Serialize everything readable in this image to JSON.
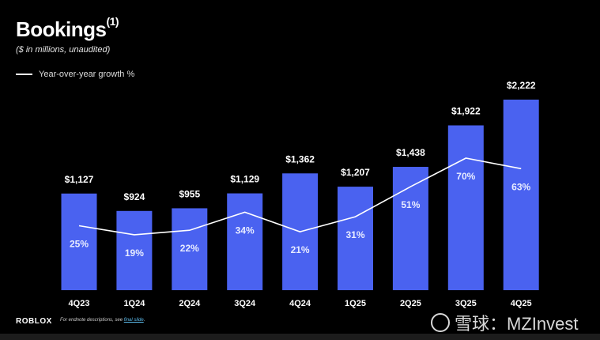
{
  "title": "Bookings",
  "title_superscript": "(1)",
  "subtitle": "($ in millions, unaudited)",
  "legend": {
    "label": "Year-over-year growth %"
  },
  "footer": {
    "logo": "ROBLOX",
    "note_prefix": "For endnote descriptions, see ",
    "note_link": "final slide",
    "note_suffix": "."
  },
  "watermark": {
    "text": "雪球：MZInvest"
  },
  "colors": {
    "bar": "#4a62f0",
    "line": "#ffffff",
    "background": "#000000"
  },
  "chart_data": {
    "type": "bar",
    "categories": [
      "4Q23",
      "1Q24",
      "2Q24",
      "3Q24",
      "4Q24",
      "1Q25",
      "2Q25",
      "3Q25",
      "4Q25"
    ],
    "series": [
      {
        "values": [
          1127,
          924,
          955,
          1129,
          1362,
          1207,
          1438,
          1922,
          2222
        ],
        "labels": [
          "$1,127",
          "$924",
          "$955",
          "$1,129",
          "$1,362",
          "$1,207",
          "$1,438",
          "$1,922",
          "$2,222"
        ]
      },
      {
        "name": "Year-over-year growth %",
        "type": "line",
        "values": [
          25,
          19,
          22,
          34,
          21,
          31,
          51,
          70,
          63
        ],
        "labels": [
          "25%",
          "19%",
          "22%",
          "34%",
          "21%",
          "31%",
          "51%",
          "70%",
          "63%"
        ]
      }
    ],
    "grid": false,
    "legend": "top-left"
  }
}
